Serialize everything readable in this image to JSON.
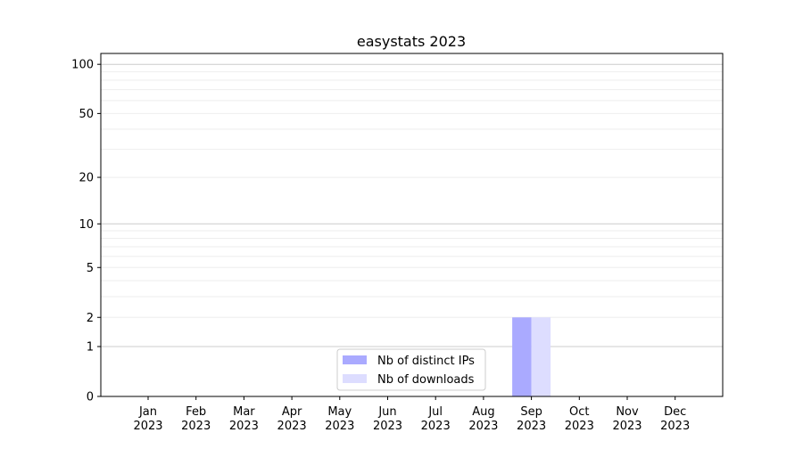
{
  "chart_data": {
    "type": "bar",
    "title": "easystats 2023",
    "xlabel": "",
    "ylabel": "",
    "y_scale": "log(1+y)",
    "ylim": [
      0,
      116
    ],
    "y_ticks": [
      0,
      1,
      2,
      5,
      10,
      20,
      50,
      100
    ],
    "grid": true,
    "legend_position": "lower-center",
    "categories": [
      "Jan\n2023",
      "Feb\n2023",
      "Mar\n2023",
      "Apr\n2023",
      "May\n2023",
      "Jun\n2023",
      "Jul\n2023",
      "Aug\n2023",
      "Sep\n2023",
      "Oct\n2023",
      "Nov\n2023",
      "Dec\n2023"
    ],
    "series": [
      {
        "name": "Nb of distinct IPs",
        "color": "#aaaaff",
        "values": [
          0,
          0,
          0,
          0,
          0,
          0,
          0,
          0,
          2,
          0,
          0,
          0
        ]
      },
      {
        "name": "Nb of downloads",
        "color": "#ddddff",
        "values": [
          0,
          0,
          0,
          0,
          0,
          0,
          0,
          0,
          2,
          0,
          0,
          0
        ]
      }
    ]
  }
}
